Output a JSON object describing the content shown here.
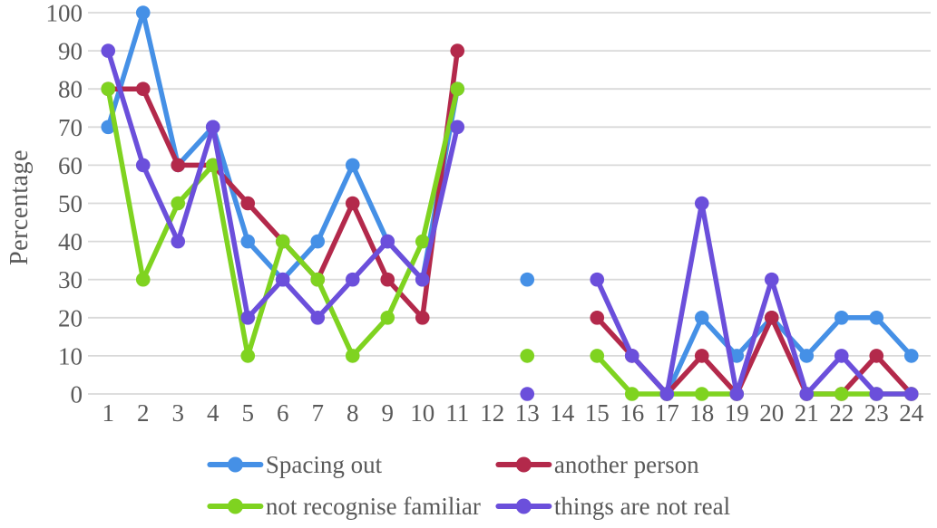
{
  "chart_data": {
    "type": "line",
    "title": "",
    "xlabel": "",
    "ylabel": "Percentage",
    "ylim": [
      0,
      100
    ],
    "y_ticks": [
      0,
      10,
      20,
      30,
      40,
      50,
      60,
      70,
      80,
      90,
      100
    ],
    "categories": [
      "1",
      "2",
      "3",
      "4",
      "5",
      "6",
      "7",
      "8",
      "9",
      "10",
      "11",
      "12",
      "13",
      "14",
      "15",
      "16",
      "17",
      "18",
      "19",
      "20",
      "21",
      "22",
      "23",
      "24"
    ],
    "grid": "horizontal",
    "legend_position": "bottom",
    "colors": {
      "grid_line": "#D9D9D9",
      "axis_text": "#595959"
    },
    "series": [
      {
        "name": "Spacing out",
        "color": "#4590E6",
        "values": [
          70,
          100,
          60,
          70,
          40,
          30,
          40,
          60,
          40,
          30,
          80,
          null,
          30,
          null,
          null,
          null,
          0,
          20,
          10,
          20,
          10,
          20,
          20,
          10
        ]
      },
      {
        "name": "another person",
        "color": "#B3294B",
        "values": [
          80,
          80,
          60,
          60,
          50,
          40,
          30,
          50,
          30,
          20,
          90,
          null,
          null,
          null,
          20,
          10,
          0,
          10,
          0,
          20,
          0,
          0,
          10,
          0
        ]
      },
      {
        "name": "not recognise familiar",
        "color": "#7FD320",
        "values": [
          80,
          30,
          50,
          60,
          10,
          40,
          30,
          10,
          20,
          40,
          80,
          null,
          10,
          null,
          10,
          0,
          0,
          0,
          0,
          null,
          0,
          0,
          0,
          0
        ]
      },
      {
        "name": "things are not real",
        "color": "#6B4FDB",
        "values": [
          90,
          60,
          40,
          70,
          20,
          30,
          20,
          30,
          40,
          30,
          70,
          null,
          0,
          null,
          30,
          10,
          0,
          50,
          0,
          30,
          0,
          10,
          0,
          0
        ]
      }
    ]
  }
}
